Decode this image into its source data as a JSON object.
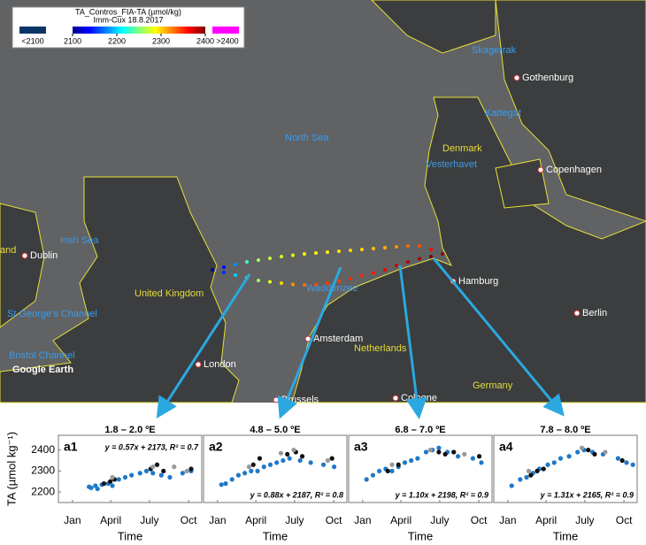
{
  "map": {
    "labels": [
      "Skagerrak",
      "Gothenburg",
      "Kattegat",
      "North Sea",
      "Denmark",
      "Vesterhavet",
      "Copenhagen",
      "Irish Sea",
      "Dublin",
      "and",
      "United Kingdom",
      "Waddenzee",
      "Hamburg",
      "St George's Channel",
      "Amsterdam",
      "Netherlands",
      "Berlin",
      "Bristol Channel",
      "London",
      "Germany",
      "Brussels",
      "Cologne",
      "Google Earth"
    ],
    "colorbar": {
      "title": "TA_Contros_FIA-TA (µmol/kg)",
      "subtitle": "Imm-Cux 18.8.2017",
      "range": [
        2100,
        2400
      ],
      "ticks": [
        2100,
        2200,
        2300,
        2400
      ],
      "below_label": "<2100",
      "above_label": ">2400",
      "below_color": "#0b3564",
      "above_color": "#ff00ff"
    },
    "track": {
      "lon": [
        -1.3,
        -0.8,
        -0.3,
        0.2,
        0.7,
        1.2,
        1.7,
        2.2,
        2.7,
        3.2,
        3.7,
        4.2,
        4.7,
        5.2,
        5.7,
        6.2,
        6.7,
        7.2,
        7.7,
        8.2,
        8.7,
        8.2,
        7.7,
        7.2,
        6.7,
        6.2,
        5.7,
        5.2,
        4.7,
        4.2,
        3.7,
        3.2,
        2.7,
        2.2,
        1.7,
        1.2,
        0.7,
        0.2,
        -0.3,
        -0.8
      ],
      "lat": [
        54.0,
        54.06,
        54.12,
        54.18,
        54.22,
        54.26,
        54.3,
        54.33,
        54.36,
        54.38,
        54.4,
        54.42,
        54.44,
        54.46,
        54.48,
        54.5,
        54.52,
        54.54,
        54.54,
        54.46,
        54.36,
        54.3,
        54.25,
        54.18,
        54.1,
        54.0,
        53.93,
        53.87,
        53.8,
        53.75,
        53.7,
        53.67,
        53.66,
        53.67,
        53.7,
        53.73,
        53.76,
        53.82,
        53.88,
        53.94
      ],
      "ta": [
        2110,
        2140,
        2180,
        2230,
        2260,
        2270,
        2275,
        2280,
        2285,
        2290,
        2290,
        2295,
        2300,
        2300,
        2305,
        2310,
        2320,
        2330,
        2340,
        2360,
        2390,
        2400,
        2390,
        2385,
        2375,
        2365,
        2355,
        2350,
        2350,
        2345,
        2345,
        2340,
        2330,
        2320,
        2300,
        2280,
        2260,
        2240,
        2200,
        2150
      ]
    }
  },
  "chart_data": [
    {
      "type": "scatter",
      "title": "1.8 – 2.0 ºE",
      "panel_label": "a1",
      "annotation": "y = 0.57x + 2173, R² = 0.7",
      "xlabel": "Time",
      "ylabel": "TA (µmol kg⁻¹)",
      "xlim": [
        -32,
        305
      ],
      "ylim": [
        2150,
        2470
      ],
      "yticks": [
        2200,
        2300,
        2400
      ],
      "xticks": [
        {
          "value": 1,
          "label": "Jan"
        },
        {
          "value": 91,
          "label": "April"
        },
        {
          "value": 182,
          "label": "July"
        },
        {
          "value": 274,
          "label": "Oct"
        }
      ],
      "series": [
        {
          "color": "#1f78c8",
          "x": [
            40,
            45,
            55,
            60,
            70,
            85,
            95,
            110,
            125,
            140,
            160,
            175,
            190,
            210,
            230,
            260,
            280
          ],
          "values": [
            2225,
            2220,
            2230,
            2215,
            2235,
            2240,
            2230,
            2260,
            2270,
            2280,
            2290,
            2300,
            2290,
            2280,
            2270,
            2290,
            2300
          ]
        },
        {
          "color": "#111111",
          "x": [
            75,
            90,
            100,
            185,
            200,
            215,
            280
          ],
          "values": [
            2240,
            2250,
            2260,
            2310,
            2330,
            2300,
            2310
          ]
        },
        {
          "color": "#999999",
          "x": [
            95,
            190,
            240,
            270
          ],
          "values": [
            2270,
            2320,
            2320,
            2300
          ]
        }
      ]
    },
    {
      "type": "scatter",
      "title": "4.8 – 5.0 ºE",
      "panel_label": "a2",
      "annotation": "y = 0.88x + 2187, R² = 0.8",
      "xlabel": "Time",
      "xlim": [
        -32,
        305
      ],
      "ylim": [
        2150,
        2470
      ],
      "xticks": [
        {
          "value": 1,
          "label": "Jan"
        },
        {
          "value": 91,
          "label": "April"
        },
        {
          "value": 182,
          "label": "July"
        },
        {
          "value": 274,
          "label": "Oct"
        }
      ],
      "series": [
        {
          "color": "#1f78c8",
          "x": [
            10,
            20,
            35,
            50,
            65,
            80,
            95,
            110,
            125,
            140,
            155,
            170,
            195,
            220,
            250,
            275
          ],
          "values": [
            2235,
            2240,
            2260,
            2280,
            2290,
            2300,
            2300,
            2320,
            2330,
            2340,
            2350,
            2360,
            2350,
            2340,
            2330,
            2320
          ]
        },
        {
          "color": "#111111",
          "x": [
            85,
            100,
            165,
            185,
            200,
            270
          ],
          "values": [
            2330,
            2360,
            2380,
            2390,
            2370,
            2360
          ]
        },
        {
          "color": "#999999",
          "x": [
            75,
            150,
            180,
            260
          ],
          "values": [
            2320,
            2385,
            2400,
            2350
          ]
        }
      ]
    },
    {
      "type": "scatter",
      "title": "6.8 – 7.0 ºE",
      "panel_label": "a3",
      "annotation": "y = 1.10x + 2198, R² = 0.9",
      "xlabel": "Time",
      "xlim": [
        -32,
        305
      ],
      "ylim": [
        2150,
        2470
      ],
      "xticks": [
        {
          "value": 1,
          "label": "Jan"
        },
        {
          "value": 91,
          "label": "April"
        },
        {
          "value": 182,
          "label": "July"
        },
        {
          "value": 274,
          "label": "Oct"
        }
      ],
      "series": [
        {
          "color": "#1f78c8",
          "x": [
            10,
            25,
            40,
            55,
            70,
            85,
            100,
            115,
            130,
            150,
            165,
            180,
            200,
            225,
            260,
            280
          ],
          "values": [
            2260,
            2280,
            2300,
            2310,
            2300,
            2320,
            2340,
            2350,
            2360,
            2390,
            2400,
            2410,
            2390,
            2370,
            2360,
            2340
          ]
        },
        {
          "color": "#111111",
          "x": [
            60,
            85,
            180,
            195,
            215,
            275
          ],
          "values": [
            2300,
            2330,
            2390,
            2380,
            2390,
            2370
          ]
        },
        {
          "color": "#999999",
          "x": [
            70,
            160,
            240
          ],
          "values": [
            2330,
            2400,
            2380
          ]
        }
      ]
    },
    {
      "type": "scatter",
      "title": "7.8 – 8.0 ºE",
      "panel_label": "a4",
      "annotation": "y = 1.31x + 2165, R² = 0.9",
      "xlabel": "Time",
      "xlim": [
        -32,
        305
      ],
      "ylim": [
        2150,
        2470
      ],
      "xticks": [
        {
          "value": 1,
          "label": "Jan"
        },
        {
          "value": 91,
          "label": "April"
        },
        {
          "value": 182,
          "label": "July"
        },
        {
          "value": 274,
          "label": "Oct"
        }
      ],
      "series": [
        {
          "color": "#1f78c8",
          "x": [
            10,
            30,
            45,
            60,
            75,
            95,
            110,
            125,
            145,
            165,
            180,
            200,
            225,
            260,
            280,
            295
          ],
          "values": [
            2230,
            2260,
            2270,
            2290,
            2310,
            2330,
            2340,
            2360,
            2370,
            2390,
            2400,
            2390,
            2380,
            2360,
            2340,
            2330
          ]
        },
        {
          "color": "#111111",
          "x": [
            55,
            70,
            85,
            190,
            205,
            270
          ],
          "values": [
            2280,
            2300,
            2310,
            2400,
            2380,
            2350
          ]
        },
        {
          "color": "#999999",
          "x": [
            50,
            175,
            230
          ],
          "values": [
            2300,
            2410,
            2390
          ]
        }
      ]
    }
  ]
}
